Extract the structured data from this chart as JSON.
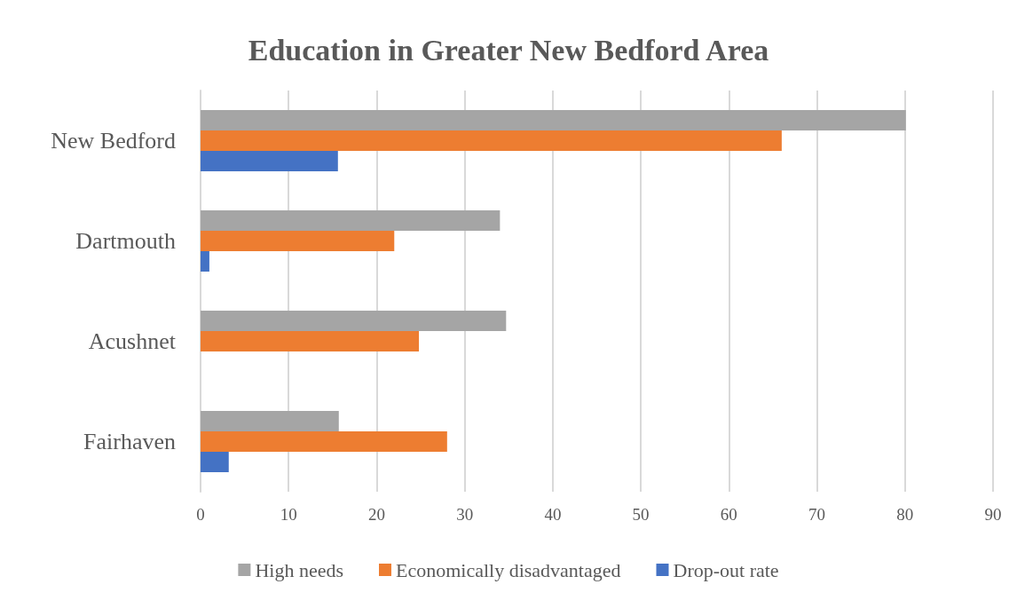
{
  "chart_data": {
    "type": "bar",
    "orientation": "horizontal",
    "title": "Education in Greater New Bedford Area",
    "categories": [
      "New Bedford",
      "Dartmouth",
      "Acushnet",
      "Fairhaven"
    ],
    "series": [
      {
        "name": "High needs",
        "color": "#a5a5a5",
        "values": [
          80.1,
          34,
          34.7,
          15.7
        ]
      },
      {
        "name": "Economically disadvantaged",
        "color": "#ed7d31",
        "values": [
          66,
          22,
          24.8,
          28
        ]
      },
      {
        "name": "Drop-out rate",
        "color": "#4472c4",
        "values": [
          15.6,
          1,
          null,
          3.2
        ]
      }
    ],
    "xlim": [
      0,
      90
    ],
    "xticks": [
      0,
      10,
      20,
      30,
      40,
      50,
      60,
      70,
      80,
      90
    ],
    "grid": "x",
    "legend": "bottom"
  }
}
